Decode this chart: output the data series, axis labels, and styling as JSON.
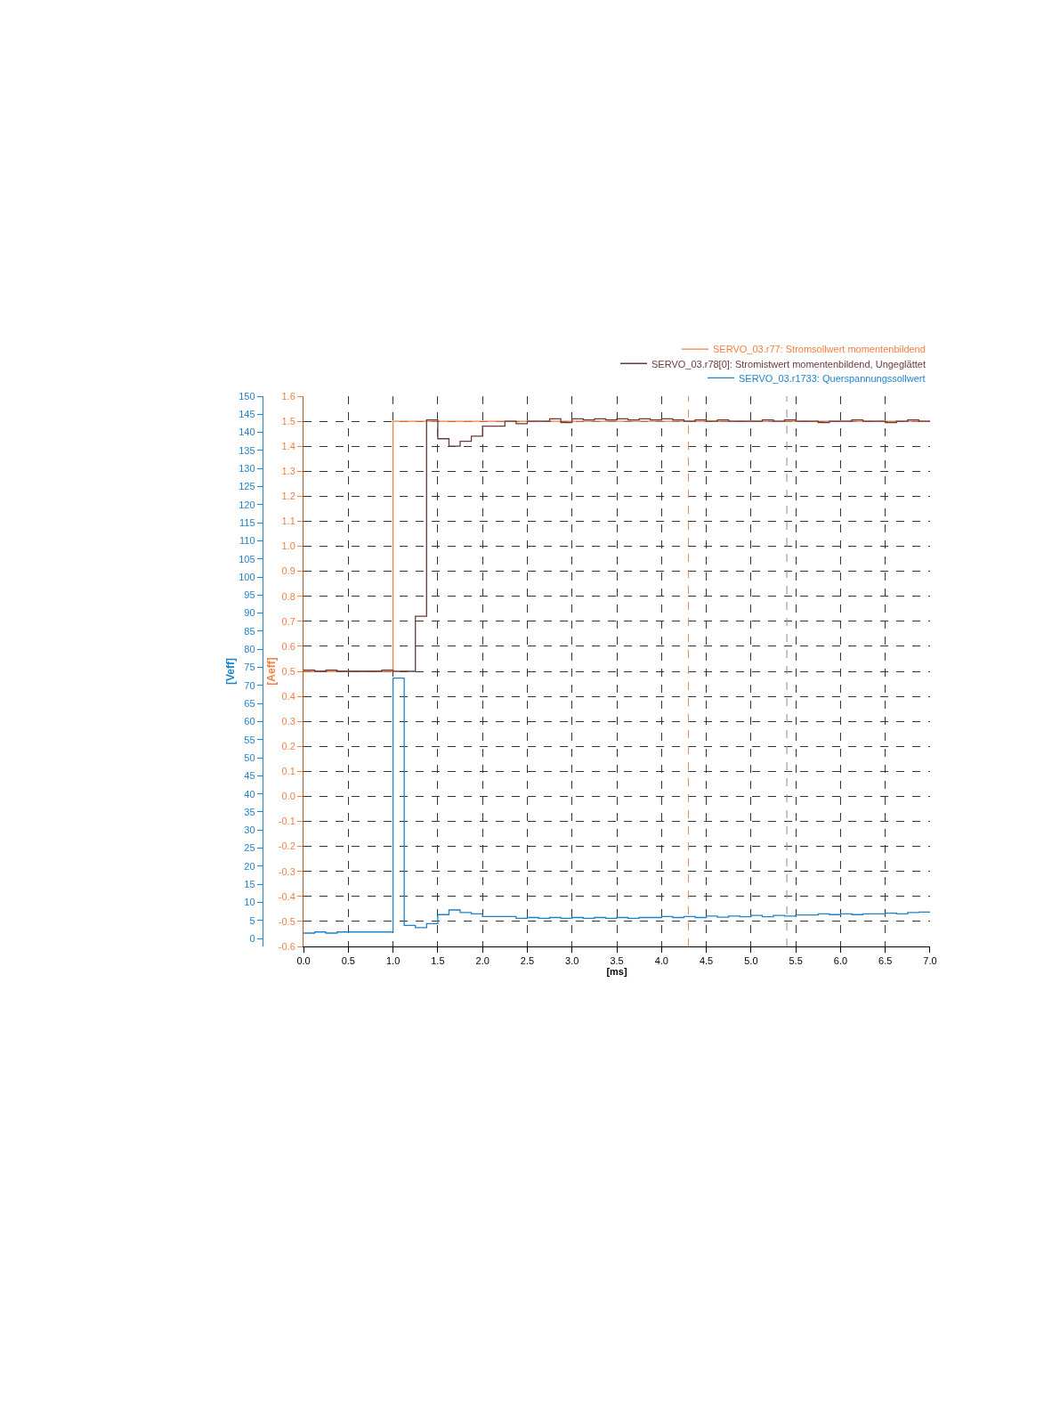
{
  "chart_data": {
    "type": "step",
    "xlabel": "[ms]",
    "ylabel": "[Aeff]",
    "y2label": "[Veff]",
    "xlim": [
      0,
      7
    ],
    "xticks": [
      {
        "value": 0,
        "label": "0.0"
      },
      0.5,
      {
        "value": 1,
        "label": "1.0"
      },
      1.5,
      {
        "value": 2,
        "label": "2.0"
      },
      2.5,
      {
        "value": 3,
        "label": "3.0"
      },
      3.5,
      {
        "value": 4,
        "label": "4.0"
      },
      4.5,
      {
        "value": 5,
        "label": "5.0"
      },
      5.5,
      {
        "value": 6,
        "label": "6.0"
      },
      6.5,
      {
        "value": 7,
        "label": "7.0"
      }
    ],
    "ylim": [
      -0.6,
      1.6
    ],
    "yticks": [
      -0.6,
      -0.5,
      -0.4,
      -0.3,
      -0.2,
      -0.1,
      {
        "value": 0,
        "label": "0.0"
      },
      0.1,
      0.2,
      0.3,
      0.4,
      0.5,
      0.6,
      0.7,
      0.8,
      0.9,
      {
        "value": 1,
        "label": "1.0"
      },
      1.1,
      1.2,
      1.3,
      1.4,
      1.5,
      1.6
    ],
    "y2lim": [
      -2.2,
      150
    ],
    "y2ticks": [
      0,
      5,
      10,
      15,
      20,
      25,
      30,
      35,
      40,
      45,
      50,
      55,
      60,
      65,
      70,
      75,
      80,
      85,
      90,
      95,
      100,
      105,
      110,
      115,
      120,
      125,
      130,
      135,
      140,
      145,
      150
    ],
    "grid": true,
    "legend": "top right",
    "line_style": "solid",
    "ref_lines": [
      {
        "axis": "x",
        "value": 4.3,
        "color": "#e8894a",
        "line_style": "dashed"
      },
      {
        "axis": "x",
        "value": 5.4,
        "color": "#8a8a8a",
        "line_style": "dashed"
      }
    ],
    "series": [
      {
        "name": "SERVO_03.r77: Stromsollwert momentenbildend",
        "color": "#f07f40",
        "x": [
          0,
          1,
          7
        ],
        "values": [
          0.5,
          1.5,
          1.5
        ]
      },
      {
        "name": "SERVO_03.r78[0]: Stromistwert momentenbildend, Ungeglättet",
        "color": "#6b3a3a",
        "x": [
          0,
          0.125,
          0.25,
          0.375,
          0.5,
          0.625,
          0.75,
          0.875,
          1,
          1.125,
          1.25,
          1.375,
          1.5,
          1.625,
          1.75,
          1.875,
          2,
          2.125,
          2.25,
          2.375,
          2.5,
          2.625,
          2.75,
          2.875,
          3,
          3.125,
          3.25,
          3.375,
          3.5,
          3.625,
          3.75,
          3.875,
          4,
          4.125,
          4.25,
          4.375,
          4.5,
          4.625,
          4.75,
          4.875,
          5,
          5.125,
          5.25,
          5.375,
          5.5,
          5.625,
          5.75,
          5.875,
          6,
          6.125,
          6.25,
          6.375,
          6.5,
          6.625,
          6.75,
          6.875,
          7
        ],
        "values": [
          0.505,
          0.5,
          0.505,
          0.5,
          0.5,
          0.5,
          0.5,
          0.505,
          0.5,
          0.5,
          0.72,
          1.505,
          1.43,
          1.4,
          1.42,
          1.44,
          1.48,
          1.48,
          1.5,
          1.49,
          1.5,
          1.5,
          1.51,
          1.495,
          1.51,
          1.505,
          1.51,
          1.505,
          1.51,
          1.505,
          1.51,
          1.505,
          1.51,
          1.505,
          1.5,
          1.505,
          1.5,
          1.505,
          1.5,
          1.5,
          1.5,
          1.505,
          1.5,
          1.505,
          1.5,
          1.5,
          1.495,
          1.5,
          1.5,
          1.505,
          1.5,
          1.5,
          1.495,
          1.5,
          1.505,
          1.5,
          1.5
        ]
      },
      {
        "name": "SERVO_03.r1733: Querspannungssollwert",
        "color": "#1e82c8",
        "axis": "y2",
        "x": [
          0,
          0.125,
          0.25,
          0.375,
          0.5,
          0.625,
          0.75,
          0.875,
          1,
          1.125,
          1.25,
          1.375,
          1.5,
          1.625,
          1.75,
          1.875,
          2,
          2.125,
          2.25,
          2.375,
          2.5,
          2.625,
          2.75,
          2.875,
          3,
          3.125,
          3.25,
          3.375,
          3.5,
          3.625,
          3.75,
          3.875,
          4,
          4.125,
          4.25,
          4.375,
          4.5,
          4.625,
          4.75,
          4.875,
          5,
          5.125,
          5.25,
          5.375,
          5.5,
          5.625,
          5.75,
          5.875,
          6,
          6.125,
          6.25,
          6.375,
          6.5,
          6.625,
          6.75,
          6.875,
          7
        ],
        "values": [
          1.5,
          1.8,
          1.5,
          1.8,
          1.8,
          1.8,
          1.8,
          1.8,
          72,
          3.6,
          3.0,
          4.1,
          6.6,
          7.9,
          7.2,
          6.8,
          6.1,
          6.1,
          6.1,
          5.6,
          5.8,
          5.6,
          5.8,
          5.6,
          5.8,
          5.6,
          5.8,
          5.6,
          5.8,
          5.6,
          5.8,
          5.8,
          6.1,
          5.8,
          6.1,
          5.8,
          6.2,
          5.9,
          6.2,
          6.0,
          6.4,
          6.0,
          6.4,
          6.2,
          6.5,
          6.5,
          6.8,
          6.6,
          6.8,
          6.6,
          6.8,
          6.8,
          7.0,
          6.8,
          7.2,
          7.3,
          7.3
        ]
      }
    ]
  }
}
